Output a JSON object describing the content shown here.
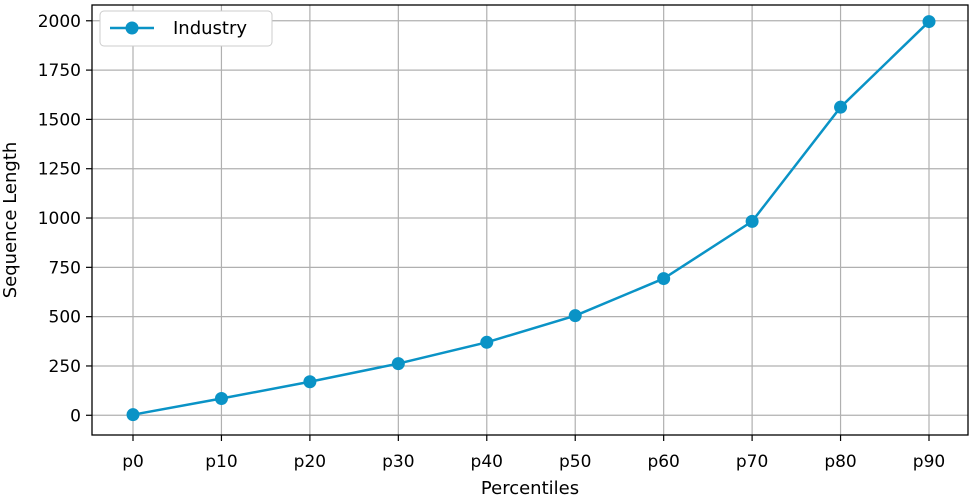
{
  "chart_data": {
    "type": "line",
    "categories": [
      "p0",
      "p10",
      "p20",
      "p30",
      "p40",
      "p50",
      "p60",
      "p70",
      "p80",
      "p90"
    ],
    "series": [
      {
        "name": "Industry",
        "values": [
          3,
          85,
          170,
          262,
          370,
          505,
          693,
          983,
          1562,
          1996
        ],
        "color": "#0a93c6"
      }
    ],
    "xlabel": "Percentiles",
    "ylabel": "Sequence Length",
    "ylim": [
      -100,
      2080
    ],
    "yticks": [
      0,
      250,
      500,
      750,
      1000,
      1250,
      1500,
      1750,
      2000
    ],
    "grid": true,
    "legend": "top-left"
  }
}
